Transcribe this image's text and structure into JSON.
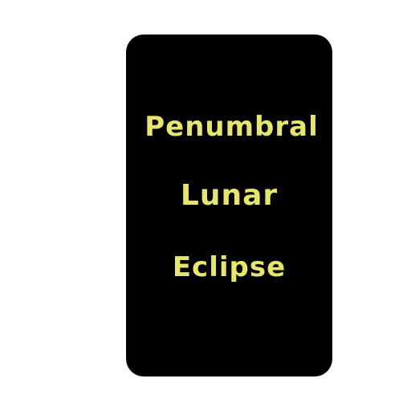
{
  "card": {
    "line1": "Penumbral",
    "line2": "Lunar",
    "line3": "Eclipse"
  },
  "colors": {
    "background": "#ffffff",
    "card": "#000000",
    "text": "#e6e66e"
  }
}
